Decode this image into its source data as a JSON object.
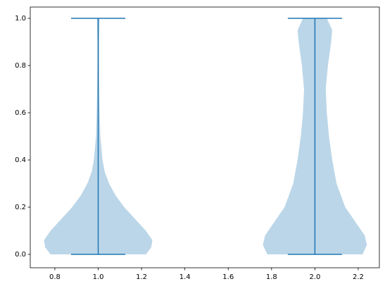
{
  "chart_data": {
    "type": "violin",
    "color": "#1f77b4",
    "series": [
      {
        "position": 1,
        "min": 0,
        "max": 1,
        "density_y": [
          0,
          0.03,
          0.06,
          0.1,
          0.15,
          0.2,
          0.25,
          0.3,
          0.35,
          0.4,
          0.5,
          0.6,
          0.7,
          0.8,
          0.9,
          1.0
        ],
        "halfwidth": [
          0.22,
          0.245,
          0.25,
          0.22,
          0.17,
          0.12,
          0.08,
          0.05,
          0.03,
          0.02,
          0.01,
          0.007,
          0.005,
          0.004,
          0.004,
          0.006
        ]
      },
      {
        "position": 2,
        "min": 0,
        "max": 1,
        "density_y": [
          0,
          0.04,
          0.08,
          0.12,
          0.2,
          0.3,
          0.4,
          0.5,
          0.6,
          0.7,
          0.8,
          0.9,
          0.95,
          1.0
        ],
        "halfwidth": [
          0.22,
          0.24,
          0.23,
          0.2,
          0.14,
          0.1,
          0.08,
          0.065,
          0.055,
          0.05,
          0.06,
          0.075,
          0.08,
          0.055
        ]
      }
    ],
    "xlim": [
      0.6865,
      2.2975
    ],
    "xticks": [
      0.8,
      {
        "value": 1,
        "label": "1.0"
      },
      1.2,
      1.4,
      1.6,
      1.8,
      {
        "value": 2,
        "label": "2.0"
      },
      2.2
    ],
    "ylim": [
      -0.0567,
      1.0478
    ],
    "yticks": [
      {
        "value": 0,
        "label": "0.0"
      },
      0.2,
      0.4,
      0.6,
      0.8,
      {
        "value": 1,
        "label": "1.0"
      }
    ]
  }
}
